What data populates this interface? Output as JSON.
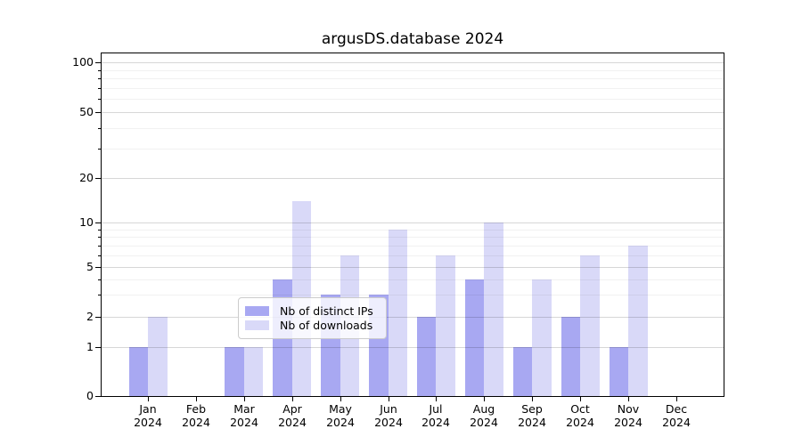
{
  "title": "argusDS.database 2024",
  "chart_data": {
    "type": "bar",
    "title": "argusDS.database 2024",
    "categories": [
      "Jan 2024",
      "Feb 2024",
      "Mar 2024",
      "Apr 2024",
      "May 2024",
      "Jun 2024",
      "Jul 2024",
      "Aug 2024",
      "Sep 2024",
      "Oct 2024",
      "Nov 2024",
      "Dec 2024"
    ],
    "series": [
      {
        "name": "Nb of distinct IPs",
        "color": "#a8a8f2",
        "values": [
          1,
          0,
          1,
          4,
          3,
          3,
          2,
          4,
          1,
          2,
          1,
          0
        ]
      },
      {
        "name": "Nb of downloads",
        "color": "#d9d9f8",
        "values": [
          2,
          0,
          1,
          14,
          6,
          9,
          6,
          10,
          4,
          6,
          7,
          0
        ]
      }
    ],
    "ylabel": "",
    "xlabel": "",
    "yscale": "symlog",
    "y_ticks": [
      0,
      1,
      2,
      5,
      10,
      20,
      50,
      100
    ],
    "y_minor_gridlines": [
      3,
      4,
      6,
      7,
      8,
      9,
      30,
      40,
      60,
      70,
      80,
      90
    ],
    "ylim": [
      0,
      110
    ],
    "grid": "on",
    "legend_position": "lower center (inside plot)"
  }
}
